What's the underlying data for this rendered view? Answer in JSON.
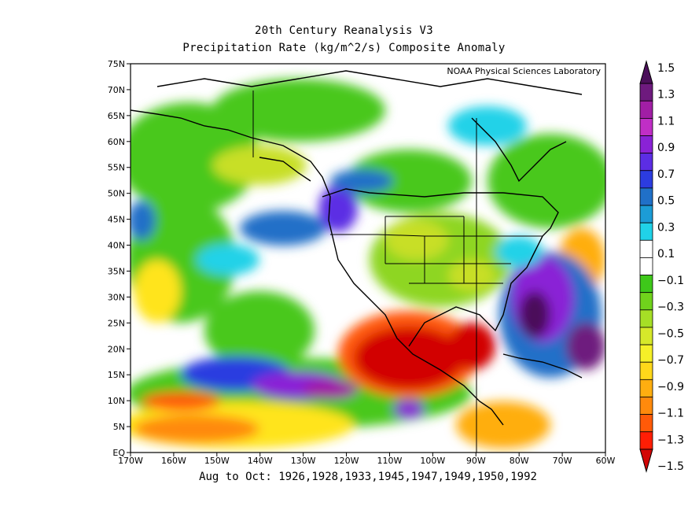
{
  "title_line1": "20th Century Reanalysis V3",
  "title_line2": "Precipitation Rate (kg/m^2/s) Composite Anomaly",
  "credit": "NOAA Physical Sciences Laboratory",
  "subtitle": "Aug to Oct: 1926,1928,1933,1945,1947,1949,1950,1992",
  "lat_labels": [
    "75N",
    "70N",
    "65N",
    "60N",
    "55N",
    "50N",
    "45N",
    "40N",
    "35N",
    "30N",
    "25N",
    "20N",
    "15N",
    "10N",
    "5N",
    "EQ"
  ],
  "lon_labels": [
    "170W",
    "160W",
    "150W",
    "140W",
    "130W",
    "120W",
    "110W",
    "100W",
    "90W",
    "80W",
    "70W",
    "60W"
  ],
  "colorbar": {
    "labels": [
      "1.5",
      "1.3",
      "1.1",
      "0.9",
      "0.7",
      "0.5",
      "0.3",
      "0.1",
      "−0.1",
      "−0.3",
      "−0.5",
      "−0.7",
      "−0.9",
      "−1.1",
      "−1.3",
      "−1.5"
    ],
    "colors": [
      "#4b0f5a",
      "#6e1a7e",
      "#a11ea5",
      "#c02ec6",
      "#8a22d6",
      "#5c2de4",
      "#2c3ce0",
      "#2070c8",
      "#1c9cd6",
      "#20d2e8",
      "#ffffff",
      "#ffffff",
      "#3ec81a",
      "#70d31c",
      "#a6df26",
      "#d6e82a",
      "#f5f028",
      "#ffd81a",
      "#ffae10",
      "#ff8a0c",
      "#ff5a08",
      "#ff1e05",
      "#d20606"
    ]
  }
}
